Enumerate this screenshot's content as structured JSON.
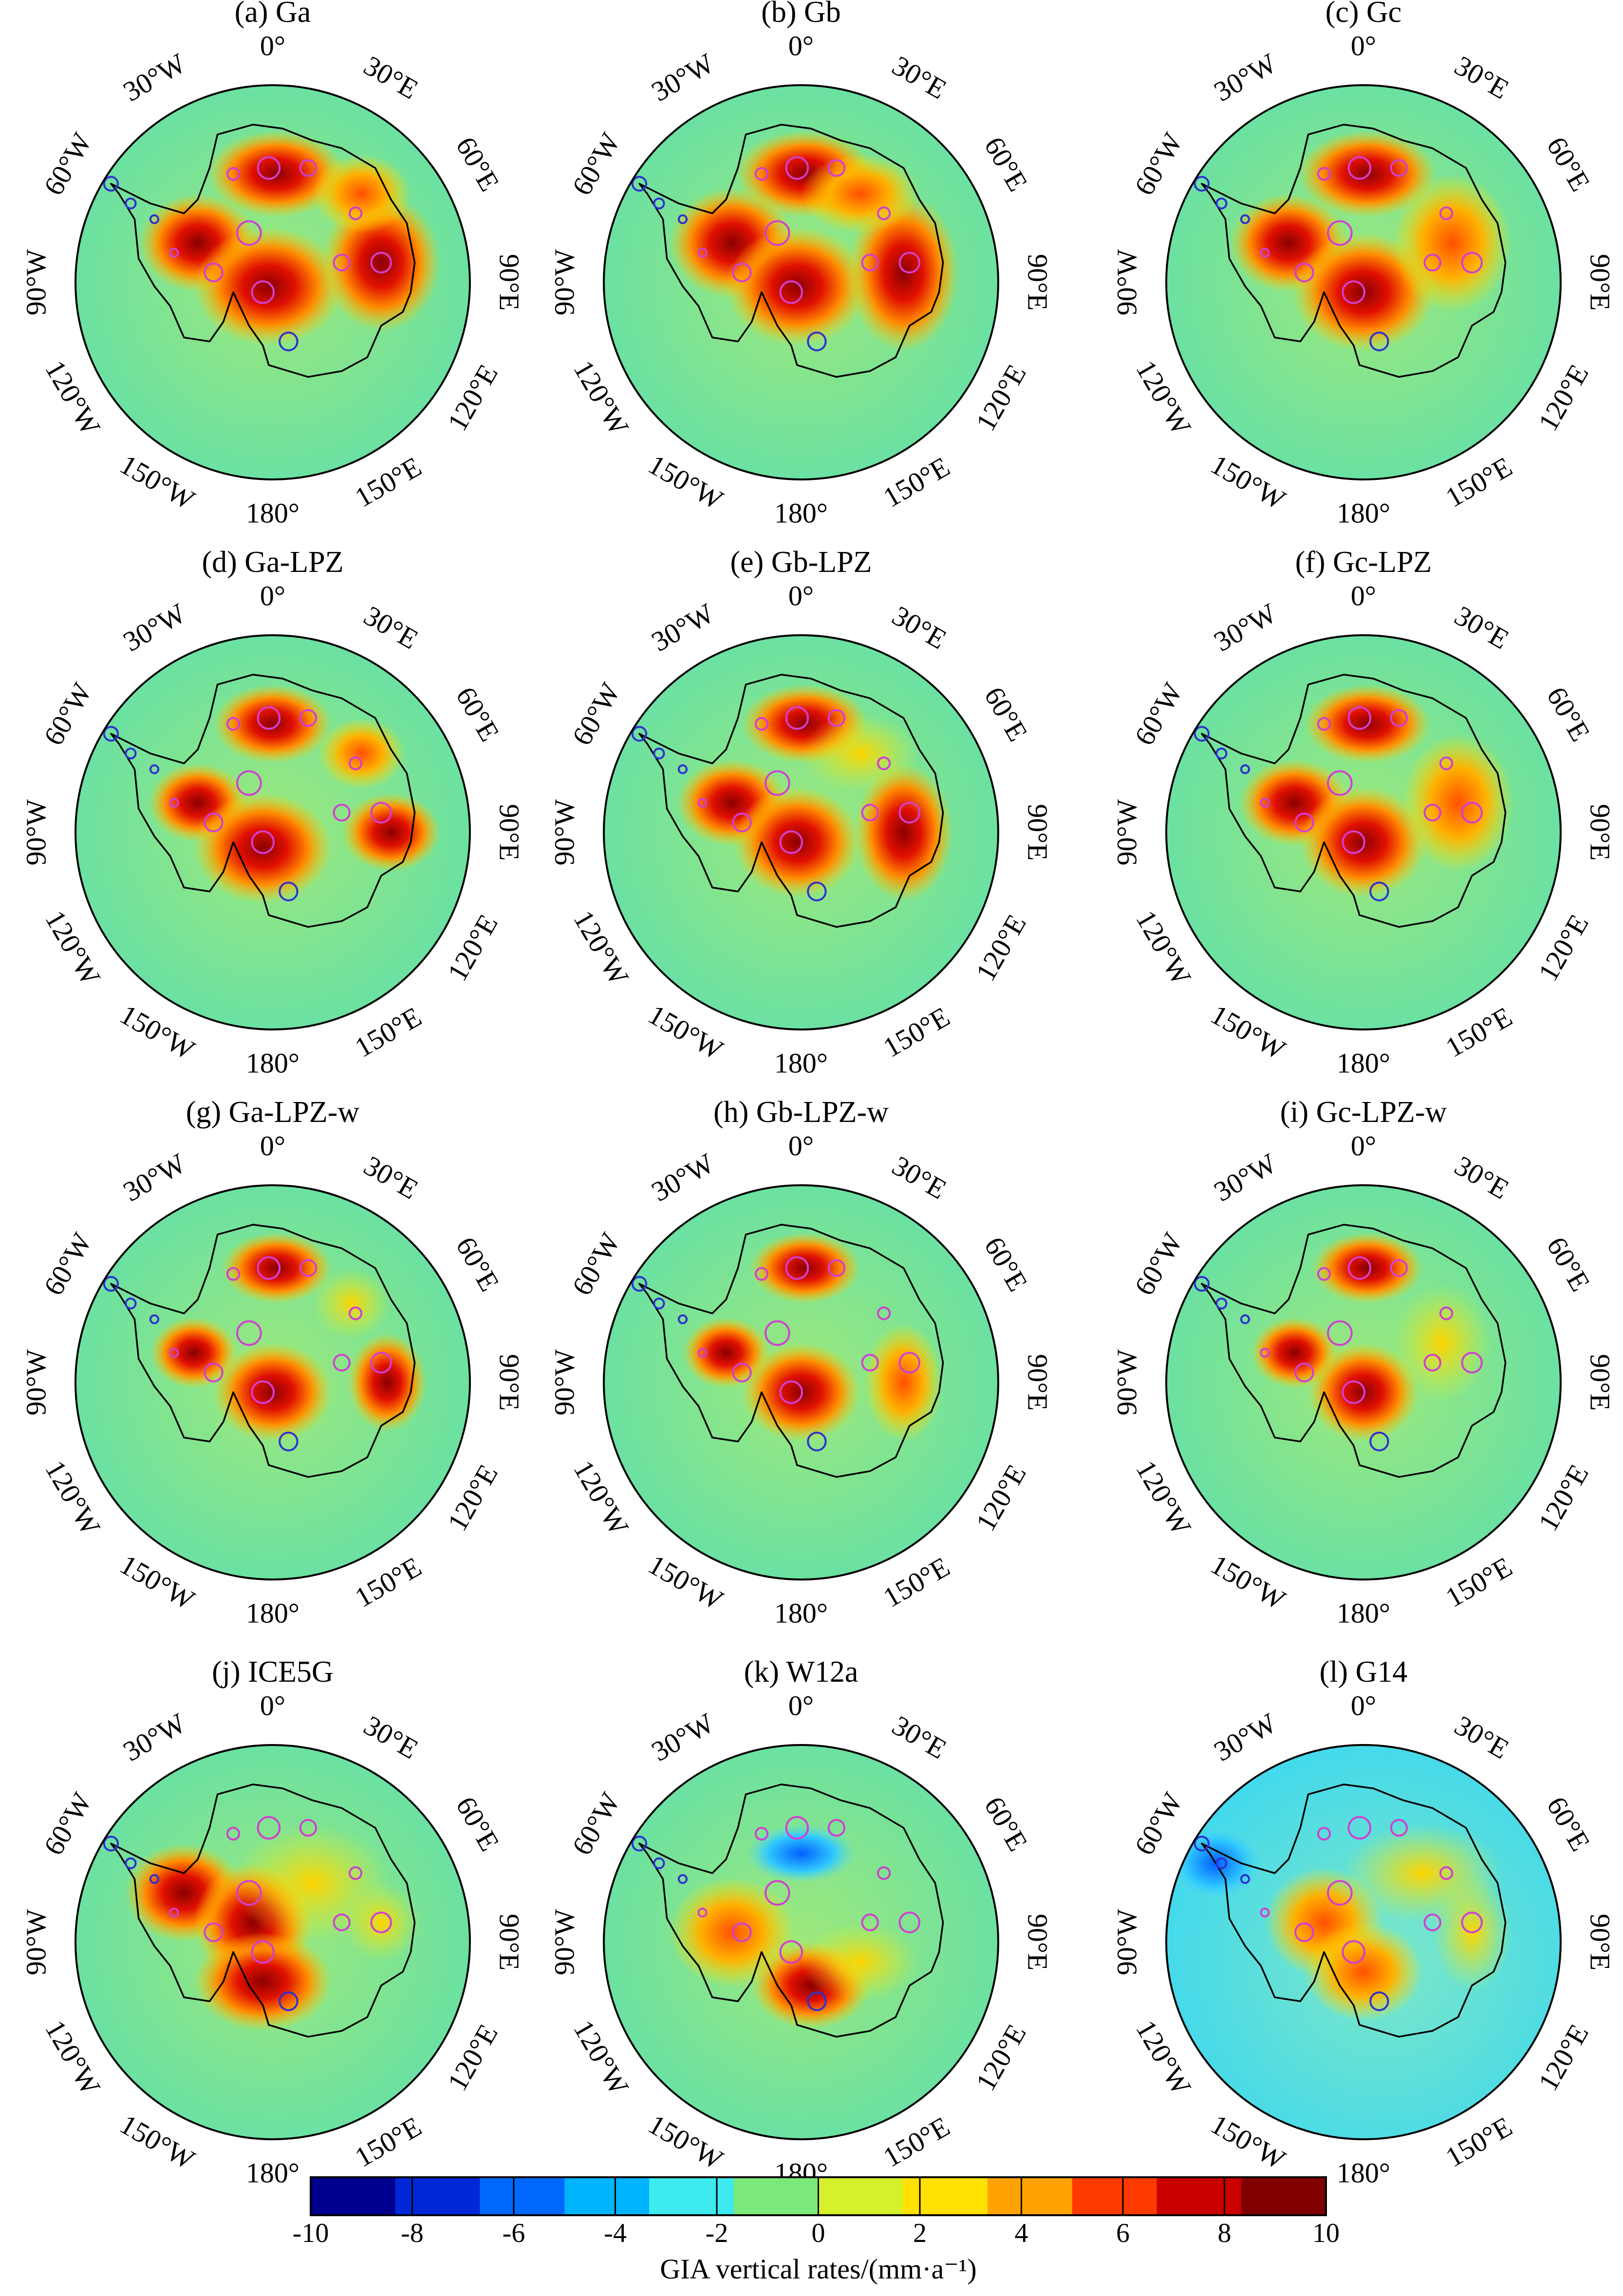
{
  "longitude_labels": [
    "0°",
    "30°E",
    "60°E",
    "90°E",
    "120°E",
    "150°E",
    "180°",
    "150°W",
    "120°W",
    "90°W",
    "60°W",
    "30°W"
  ],
  "panels": [
    {
      "id": "a",
      "title": "(a) Ga"
    },
    {
      "id": "b",
      "title": "(b) Gb"
    },
    {
      "id": "c",
      "title": "(c) Gc"
    },
    {
      "id": "d",
      "title": "(d) Ga-LPZ"
    },
    {
      "id": "e",
      "title": "(e) Gb-LPZ"
    },
    {
      "id": "f",
      "title": "(f) Gc-LPZ"
    },
    {
      "id": "g",
      "title": "(g) Ga-LPZ-w"
    },
    {
      "id": "h",
      "title": "(h) Gb-LPZ-w"
    },
    {
      "id": "i",
      "title": "(i) Gc-LPZ-w"
    },
    {
      "id": "j",
      "title": "(j) ICE5G"
    },
    {
      "id": "k",
      "title": "(k) W12a"
    },
    {
      "id": "l",
      "title": "(l) G14"
    }
  ],
  "colorbar": {
    "label": "GIA vertical rates/(mm·a⁻¹)",
    "ticks": [
      "-10",
      "-8",
      "-6",
      "-4",
      "-2",
      "0",
      "2",
      "4",
      "6",
      "8",
      "10"
    ],
    "range": [
      -10,
      10
    ],
    "colors": [
      "#00008f",
      "#0028d6",
      "#0068ff",
      "#00b4ff",
      "#3ceaf0",
      "#7be87a",
      "#d6f02c",
      "#ffe000",
      "#ffa200",
      "#ff3a00",
      "#c80000",
      "#800000"
    ]
  }
}
